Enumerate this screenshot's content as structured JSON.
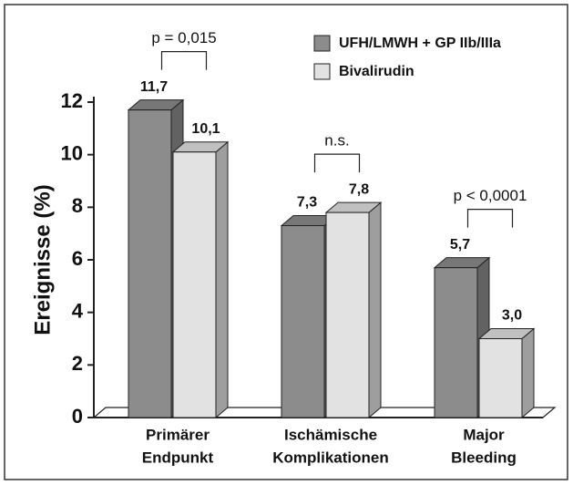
{
  "chart_data": {
    "type": "bar3d",
    "y_label": "Ereignisse (%)",
    "categories": [
      [
        "Primärer",
        "Endpunkt"
      ],
      [
        "Ischämische",
        "Komplikationen"
      ],
      [
        "Major",
        "Bleeding"
      ]
    ],
    "series": [
      {
        "name": "UFH/LMWH + GP IIb/IIIa",
        "color": "#8c8c8c",
        "values": [
          11.7,
          7.3,
          5.7
        ],
        "value_labels": [
          "11,7",
          "7,3",
          "5,7"
        ]
      },
      {
        "name": "Bivalirudin",
        "color": "#e2e2e2",
        "values": [
          10.1,
          7.8,
          3.0
        ],
        "value_labels": [
          "10,1",
          "7,8",
          "3,0"
        ]
      }
    ],
    "annotations": [
      "p = 0,015",
      "n.s.",
      "p < 0,0001"
    ],
    "ylim": [
      0,
      12
    ],
    "yticks": [
      0,
      2,
      4,
      6,
      8,
      10,
      12
    ]
  }
}
